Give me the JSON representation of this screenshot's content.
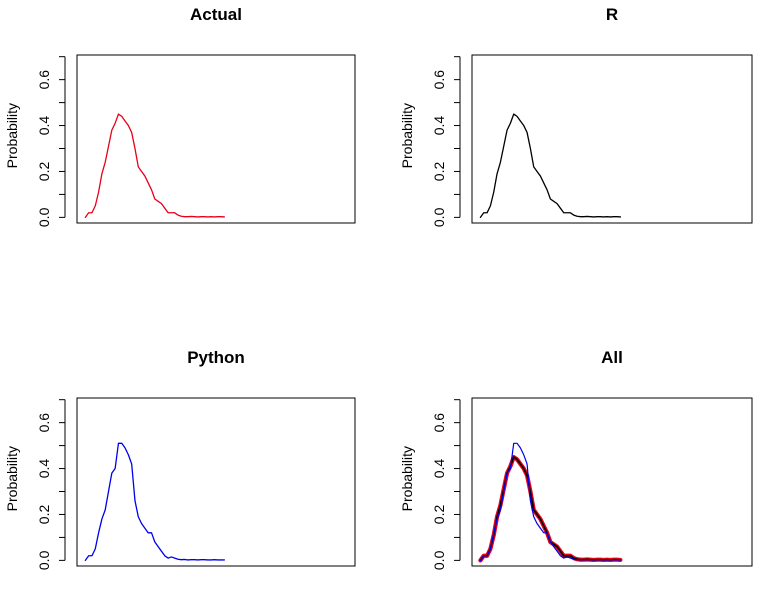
{
  "chart_data": [
    {
      "type": "line",
      "title": "Actual",
      "xlabel": "",
      "ylabel": "Probability",
      "ylim": [
        0,
        0.7
      ],
      "yticks": [
        "0.0",
        "0.2",
        "0.4",
        "0.6"
      ],
      "grid": false,
      "series": [
        {
          "color": "#e8001c",
          "values": [
            0.0,
            0.02,
            0.02,
            0.05,
            0.11,
            0.19,
            0.24,
            0.31,
            0.38,
            0.41,
            0.45,
            0.44,
            0.42,
            0.4,
            0.37,
            0.3,
            0.22,
            0.2,
            0.18,
            0.15,
            0.12,
            0.08,
            0.07,
            0.06,
            0.04,
            0.02,
            0.02,
            0.02,
            0.01,
            0.005,
            0.003,
            0.003,
            0.004,
            0.003,
            0.002,
            0.003,
            0.003,
            0.002,
            0.003,
            0.002,
            0.003,
            0.003,
            0.002
          ]
        }
      ]
    },
    {
      "type": "line",
      "title": "R",
      "xlabel": "",
      "ylabel": "Probability",
      "ylim": [
        0,
        0.7
      ],
      "yticks": [
        "0.0",
        "0.2",
        "0.4",
        "0.6"
      ],
      "grid": false,
      "series": [
        {
          "color": "#000000",
          "values": [
            0.0,
            0.02,
            0.02,
            0.05,
            0.11,
            0.19,
            0.24,
            0.31,
            0.38,
            0.41,
            0.45,
            0.44,
            0.42,
            0.4,
            0.37,
            0.3,
            0.22,
            0.2,
            0.18,
            0.15,
            0.12,
            0.08,
            0.07,
            0.06,
            0.04,
            0.02,
            0.02,
            0.02,
            0.01,
            0.005,
            0.003,
            0.003,
            0.004,
            0.003,
            0.002,
            0.003,
            0.003,
            0.002,
            0.003,
            0.002,
            0.003,
            0.003,
            0.002
          ]
        }
      ]
    },
    {
      "type": "line",
      "title": "Python",
      "xlabel": "",
      "ylabel": "Probability",
      "ylim": [
        0,
        0.7
      ],
      "yticks": [
        "0.0",
        "0.2",
        "0.4",
        "0.6"
      ],
      "grid": false,
      "series": [
        {
          "color": "#0000ee",
          "values": [
            0.0,
            0.02,
            0.02,
            0.05,
            0.12,
            0.18,
            0.22,
            0.3,
            0.38,
            0.4,
            0.51,
            0.51,
            0.49,
            0.46,
            0.42,
            0.26,
            0.19,
            0.16,
            0.14,
            0.12,
            0.12,
            0.08,
            0.06,
            0.04,
            0.02,
            0.01,
            0.015,
            0.01,
            0.005,
            0.003,
            0.004,
            0.002,
            0.003,
            0.003,
            0.002,
            0.003,
            0.003,
            0.002,
            0.002,
            0.003,
            0.002,
            0.002,
            0.002
          ]
        }
      ]
    },
    {
      "type": "line",
      "title": "All",
      "xlabel": "",
      "ylabel": "Probability",
      "ylim": [
        0,
        0.7
      ],
      "yticks": [
        "0.0",
        "0.2",
        "0.4",
        "0.6"
      ],
      "grid": false,
      "series": [
        {
          "color": "#e8001c",
          "values": [
            0.0,
            0.02,
            0.02,
            0.05,
            0.11,
            0.19,
            0.24,
            0.31,
            0.38,
            0.41,
            0.45,
            0.44,
            0.42,
            0.4,
            0.37,
            0.3,
            0.22,
            0.2,
            0.18,
            0.15,
            0.12,
            0.08,
            0.07,
            0.06,
            0.04,
            0.02,
            0.02,
            0.02,
            0.01,
            0.005,
            0.003,
            0.003,
            0.004,
            0.003,
            0.002,
            0.003,
            0.003,
            0.002,
            0.003,
            0.002,
            0.003,
            0.003,
            0.002
          ]
        },
        {
          "color": "#000000",
          "values": [
            0.0,
            0.02,
            0.02,
            0.05,
            0.11,
            0.19,
            0.24,
            0.31,
            0.38,
            0.41,
            0.45,
            0.44,
            0.42,
            0.4,
            0.37,
            0.3,
            0.22,
            0.2,
            0.18,
            0.15,
            0.12,
            0.08,
            0.07,
            0.06,
            0.04,
            0.02,
            0.02,
            0.02,
            0.01,
            0.005,
            0.003,
            0.003,
            0.004,
            0.003,
            0.002,
            0.003,
            0.003,
            0.002,
            0.003,
            0.002,
            0.003,
            0.003,
            0.002
          ]
        },
        {
          "color": "#0000ee",
          "values": [
            0.0,
            0.02,
            0.02,
            0.05,
            0.12,
            0.18,
            0.22,
            0.3,
            0.38,
            0.4,
            0.51,
            0.51,
            0.49,
            0.46,
            0.42,
            0.26,
            0.19,
            0.16,
            0.14,
            0.12,
            0.12,
            0.08,
            0.06,
            0.04,
            0.02,
            0.01,
            0.015,
            0.01,
            0.005,
            0.003,
            0.004,
            0.002,
            0.003,
            0.003,
            0.002,
            0.003,
            0.003,
            0.002,
            0.002,
            0.003,
            0.002,
            0.002,
            0.002
          ]
        }
      ]
    }
  ]
}
